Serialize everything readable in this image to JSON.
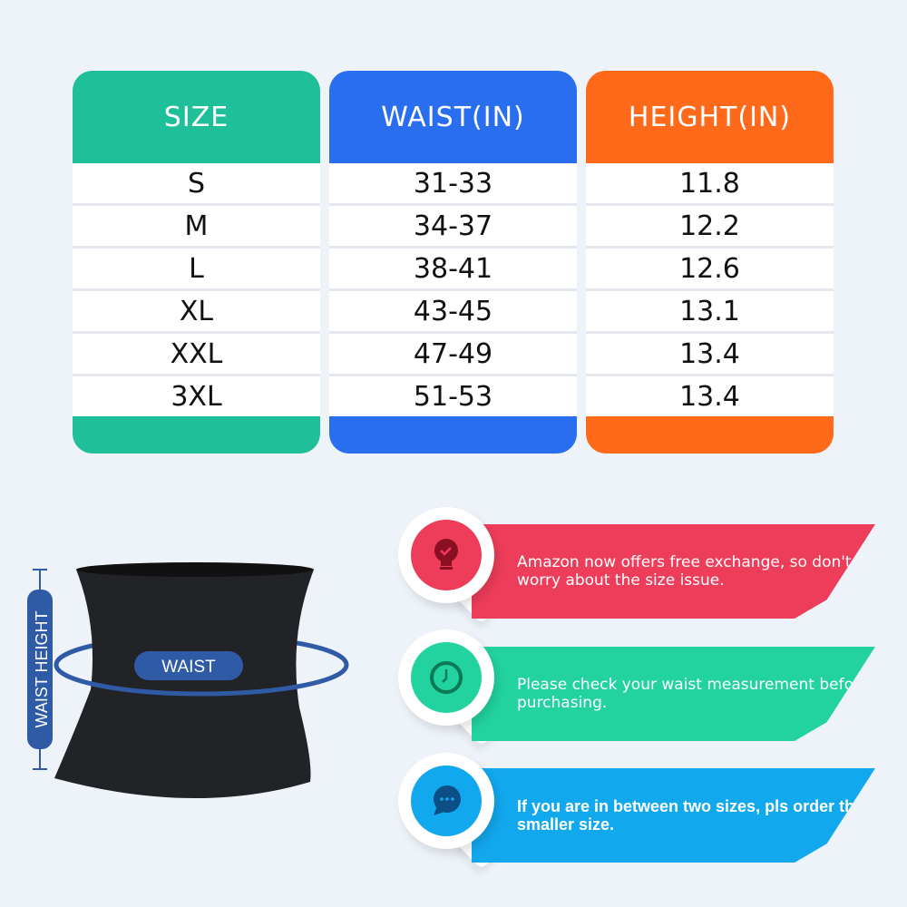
{
  "table": {
    "columns": [
      {
        "header": "SIZE",
        "color": "#1fbf9a",
        "values": [
          "S",
          "M",
          "L",
          "XL",
          "XXL",
          "3XL"
        ]
      },
      {
        "header": "WAIST(IN)",
        "color": "#2a6ef0",
        "values": [
          "31-33",
          "34-37",
          "38-41",
          "43-45",
          "47-49",
          "51-53"
        ]
      },
      {
        "header": "HEIGHT(IN)",
        "color": "#ff6a1a",
        "values": [
          "11.8",
          "12.2",
          "12.6",
          "13.1",
          "13.4",
          "13.4"
        ]
      }
    ]
  },
  "figure": {
    "waist_label": "WAIST",
    "height_label": "WAIST HEIGHT",
    "accent": "#2f5aa6"
  },
  "tips": [
    {
      "icon": "lightbulb-check-icon",
      "color": "#ee3d5a",
      "text": "Amazon now offers free exchange, so don't worry about the size issue."
    },
    {
      "icon": "clock-icon",
      "color": "#22d3a0",
      "text": "Please check your waist measurement before purchasing."
    },
    {
      "icon": "chat-bubble-icon",
      "color": "#12a8ee",
      "text": "If you are in between two sizes, pls order the smaller size."
    }
  ]
}
